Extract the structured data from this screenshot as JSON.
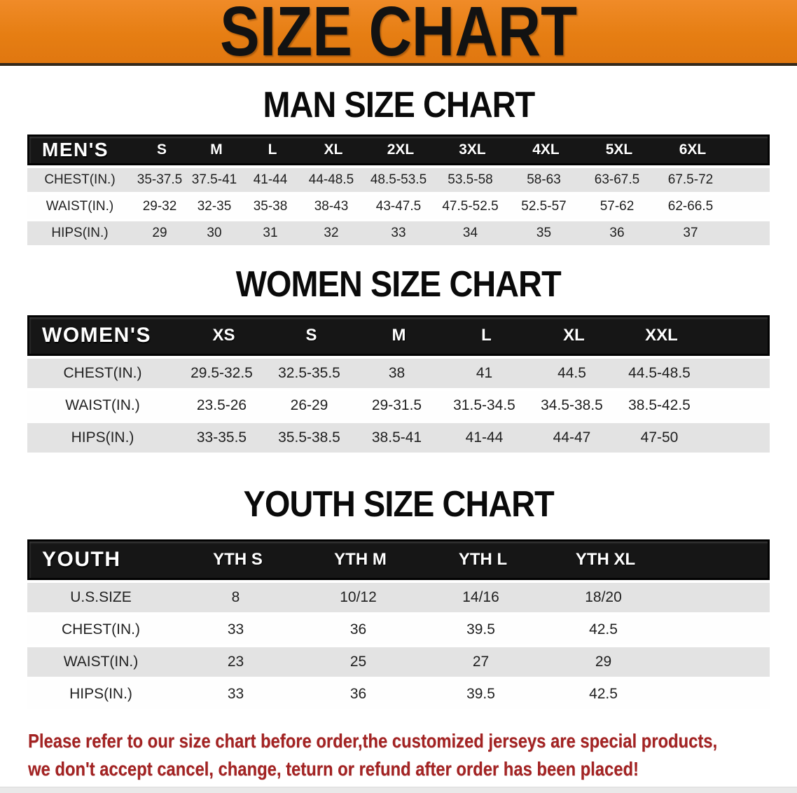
{
  "banner": {
    "title": "SIZE CHART"
  },
  "colors": {
    "banner_orange": "#E67E13",
    "header_black": "#161616",
    "stripe_gray": "#E3E3E3",
    "disclaimer_red": "#A32323"
  },
  "chart_data": [
    {
      "type": "table",
      "id": "men",
      "title": "MAN SIZE CHART",
      "header_label": "MEN'S",
      "columns": [
        "S",
        "M",
        "L",
        "XL",
        "2XL",
        "3XL",
        "4XL",
        "5XL",
        "6XL"
      ],
      "rows": [
        {
          "label": "CHEST(IN.)",
          "values": [
            "35-37.5",
            "37.5-41",
            "41-44",
            "44-48.5",
            "48.5-53.5",
            "53.5-58",
            "58-63",
            "63-67.5",
            "67.5-72"
          ]
        },
        {
          "label": "WAIST(IN.)",
          "values": [
            "29-32",
            "32-35",
            "35-38",
            "38-43",
            "43-47.5",
            "47.5-52.5",
            "52.5-57",
            "57-62",
            "62-66.5"
          ]
        },
        {
          "label": "HIPS(IN.)",
          "values": [
            "29",
            "30",
            "31",
            "32",
            "33",
            "34",
            "35",
            "36",
            "37"
          ]
        }
      ]
    },
    {
      "type": "table",
      "id": "women",
      "title": "WOMEN SIZE CHART",
      "header_label": "WOMEN'S",
      "columns": [
        "XS",
        "S",
        "M",
        "L",
        "XL",
        "XXL"
      ],
      "rows": [
        {
          "label": "CHEST(IN.)",
          "values": [
            "29.5-32.5",
            "32.5-35.5",
            "38",
            "41",
            "44.5",
            "44.5-48.5"
          ]
        },
        {
          "label": "WAIST(IN.)",
          "values": [
            "23.5-26",
            "26-29",
            "29-31.5",
            "31.5-34.5",
            "34.5-38.5",
            "38.5-42.5"
          ]
        },
        {
          "label": "HIPS(IN.)",
          "values": [
            "33-35.5",
            "35.5-38.5",
            "38.5-41",
            "41-44",
            "44-47",
            "47-50"
          ]
        }
      ]
    },
    {
      "type": "table",
      "id": "youth",
      "title": "YOUTH SIZE CHART",
      "header_label": "YOUTH",
      "columns": [
        "YTH S",
        "YTH M",
        "YTH L",
        "YTH XL"
      ],
      "rows": [
        {
          "label": "U.S.SIZE",
          "values": [
            "8",
            "10/12",
            "14/16",
            "18/20"
          ]
        },
        {
          "label": "CHEST(IN.)",
          "values": [
            "33",
            "36",
            "39.5",
            "42.5"
          ]
        },
        {
          "label": "WAIST(IN.)",
          "values": [
            "23",
            "25",
            "27",
            "29"
          ]
        },
        {
          "label": "HIPS(IN.)",
          "values": [
            "33",
            "36",
            "39.5",
            "42.5"
          ]
        }
      ]
    }
  ],
  "disclaimer": {
    "line1": "Please refer to our size chart before order,the customized jerseys are special products,",
    "line2": "we don't accept cancel, change, teturn or refund after order has been placed!"
  }
}
